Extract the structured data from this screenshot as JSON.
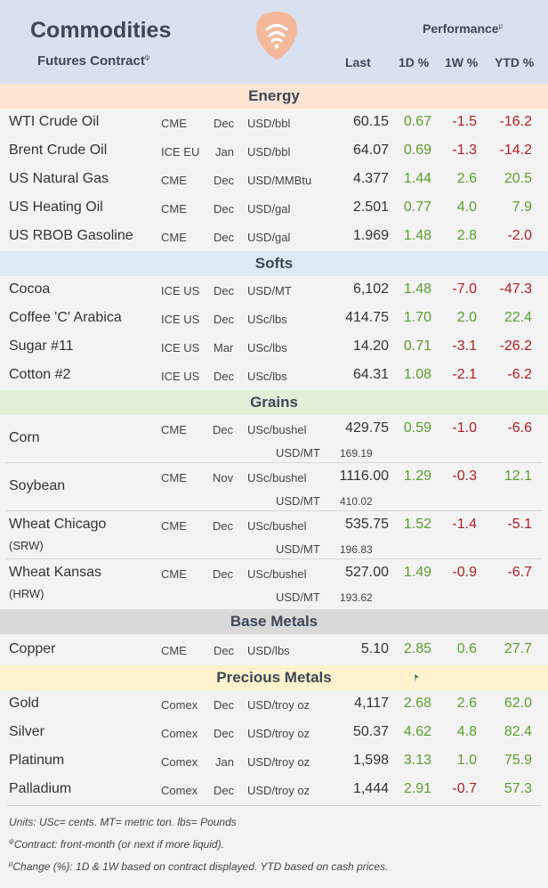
{
  "header": {
    "title": "Commodities",
    "subtitle": "Futures Contract",
    "subtitle_mark": "ψ",
    "performance": "Performance",
    "performance_mark": "μ",
    "col_last": "Last",
    "col_1d": "1D %",
    "col_1w": "1W %",
    "col_ytd": "YTD %"
  },
  "sections": {
    "energy": "Energy",
    "softs": "Softs",
    "grains": "Grains",
    "base": "Base Metals",
    "precious": "Precious Metals"
  },
  "energy": [
    {
      "name": "WTI Crude Oil",
      "exch": "CME",
      "month": "Dec",
      "unit": "USD/bbl",
      "last": "60.15",
      "d1": "0.67",
      "w1": "-1.5",
      "ytd": "-16.2"
    },
    {
      "name": "Brent Crude Oil",
      "exch": "ICE EU",
      "month": "Jan",
      "unit": "USD/bbl",
      "last": "64.07",
      "d1": "0.69",
      "w1": "-1.3",
      "ytd": "-14.2"
    },
    {
      "name": "US Natural Gas",
      "exch": "CME",
      "month": "Dec",
      "unit": "USD/MMBtu",
      "last": "4.377",
      "d1": "1.44",
      "w1": "2.6",
      "ytd": "20.5"
    },
    {
      "name": "US Heating Oil",
      "exch": "CME",
      "month": "Dec",
      "unit": "USD/gal",
      "last": "2.501",
      "d1": "0.77",
      "w1": "4.0",
      "ytd": "7.9"
    },
    {
      "name": "US RBOB Gasoline",
      "exch": "CME",
      "month": "Dec",
      "unit": "USD/gal",
      "last": "1.969",
      "d1": "1.48",
      "w1": "2.8",
      "ytd": "-2.0"
    }
  ],
  "softs": [
    {
      "name": "Cocoa",
      "exch": "ICE US",
      "month": "Dec",
      "unit": "USD/MT",
      "last": "6,102",
      "d1": "1.48",
      "w1": "-7.0",
      "ytd": "-47.3"
    },
    {
      "name": "Coffee 'C' Arabica",
      "exch": "ICE US",
      "month": "Dec",
      "unit": "USc/lbs",
      "last": "414.75",
      "d1": "1.70",
      "w1": "2.0",
      "ytd": "22.4"
    },
    {
      "name": "Sugar #11",
      "exch": "ICE US",
      "month": "Mar",
      "unit": "USc/lbs",
      "last": "14.20",
      "d1": "0.71",
      "w1": "-3.1",
      "ytd": "-26.2"
    },
    {
      "name": "Cotton #2",
      "exch": "ICE US",
      "month": "Dec",
      "unit": "USc/lbs",
      "last": "64.31",
      "d1": "1.08",
      "w1": "-2.1",
      "ytd": "-6.2"
    }
  ],
  "grains": [
    {
      "name": "Corn",
      "name2": "",
      "exch": "CME",
      "month": "Dec",
      "unit": "USc/bushel",
      "last": "429.75",
      "unit2": "USD/MT",
      "last2": "169.19",
      "d1": "0.59",
      "w1": "-1.0",
      "ytd": "-6.6"
    },
    {
      "name": "Soybean",
      "name2": "",
      "exch": "CME",
      "month": "Nov",
      "unit": "USc/bushel",
      "last": "1116.00",
      "unit2": "USD/MT",
      "last2": "410.02",
      "d1": "1.29",
      "w1": "-0.3",
      "ytd": "12.1"
    },
    {
      "name": "Wheat Chicago",
      "name2": "(SRW)",
      "exch": "CME",
      "month": "Dec",
      "unit": "USc/bushel",
      "last": "535.75",
      "unit2": "USD/MT",
      "last2": "196.83",
      "d1": "1.52",
      "w1": "-1.4",
      "ytd": "-5.1"
    },
    {
      "name": "Wheat Kansas",
      "name2": "(HRW)",
      "exch": "CME",
      "month": "Dec",
      "unit": "USc/bushel",
      "last": "527.00",
      "unit2": "USD/MT",
      "last2": "193.62",
      "d1": "1.49",
      "w1": "-0.9",
      "ytd": "-6.7"
    }
  ],
  "base": [
    {
      "name": "Copper",
      "exch": "CME",
      "month": "Dec",
      "unit": "USD/lbs",
      "last": "5.10",
      "d1": "2.85",
      "w1": "0.6",
      "ytd": "27.7"
    }
  ],
  "precious": [
    {
      "name": "Gold",
      "exch": "Comex",
      "month": "Dec",
      "unit": "USD/troy oz",
      "last": "4,117",
      "d1": "2.68",
      "w1": "2.6",
      "ytd": "62.0"
    },
    {
      "name": "Silver",
      "exch": "Comex",
      "month": "Dec",
      "unit": "USD/troy oz",
      "last": "50.37",
      "d1": "4.62",
      "w1": "4.8",
      "ytd": "82.4"
    },
    {
      "name": "Platinum",
      "exch": "Comex",
      "month": "Jan",
      "unit": "USD/troy oz",
      "last": "1,598",
      "d1": "3.13",
      "w1": "1.0",
      "ytd": "75.9"
    },
    {
      "name": "Palladium",
      "exch": "Comex",
      "month": "Dec",
      "unit": "USD/troy oz",
      "last": "1,444",
      "d1": "2.91",
      "w1": "-0.7",
      "ytd": "57.3"
    }
  ],
  "footer": {
    "units": "Units: USc= cents.  MT= metric ton.  lbs= Pounds",
    "contract_mark": "ψ",
    "contract": "Contract: front-month (or next if more liquid).",
    "change_mark": "μ",
    "change": "Change (%): 1D & 1W based on contract displayed. YTD based on cash prices."
  },
  "colors": {
    "positive": "#5a9e2e",
    "negative": "#b01e24",
    "header_bg": "#d9e1f1",
    "logo": "#f4b89a"
  },
  "icons": {
    "logo": "signal-logo-icon",
    "cursor": "mouse-cursor-icon"
  }
}
